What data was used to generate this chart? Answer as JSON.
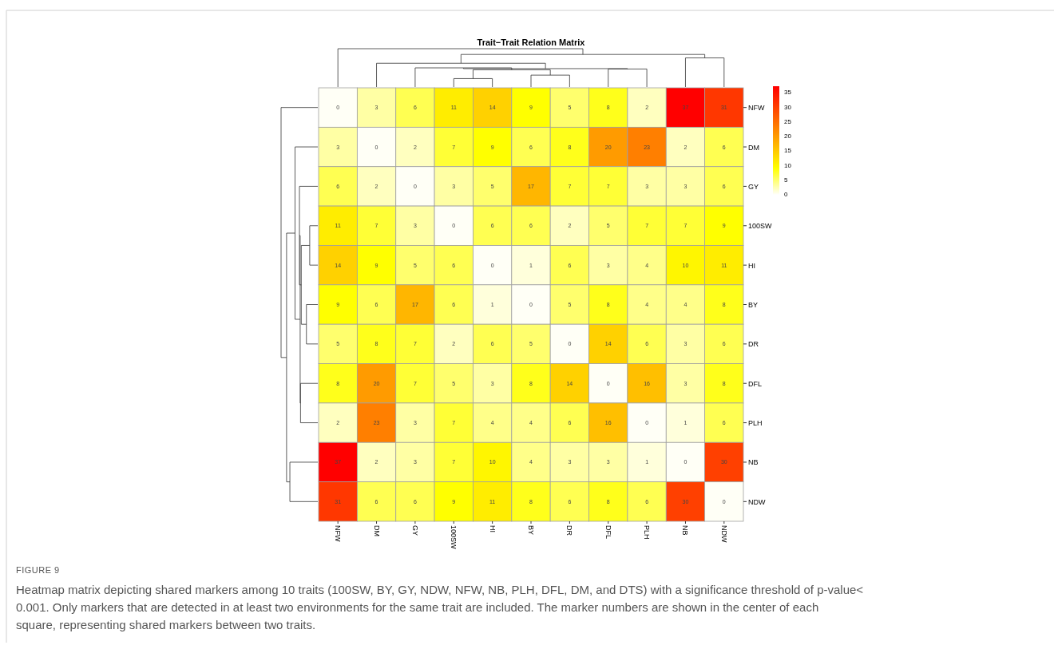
{
  "chart_data": {
    "type": "heatmap",
    "title": "Trait−Trait Relation Matrix",
    "categories": [
      "NFW",
      "DM",
      "GY",
      "100SW",
      "HI",
      "BY",
      "DR",
      "DFL",
      "PLH",
      "NB",
      "NDW"
    ],
    "y_categories": [
      "NFW",
      "DM",
      "GY",
      "100SW",
      "HI",
      "BY",
      "DR",
      "DFL",
      "PLH",
      "NB",
      "NDW"
    ],
    "cells": [
      [
        0,
        3,
        6,
        11,
        14,
        9,
        5,
        8,
        2,
        37,
        31
      ],
      [
        3,
        0,
        2,
        7,
        9,
        6,
        8,
        20,
        23,
        2,
        6
      ],
      [
        6,
        2,
        0,
        3,
        5,
        17,
        7,
        7,
        3,
        3,
        6
      ],
      [
        11,
        7,
        3,
        0,
        6,
        6,
        2,
        5,
        7,
        7,
        9
      ],
      [
        14,
        9,
        5,
        6,
        0,
        1,
        6,
        3,
        4,
        10,
        11
      ],
      [
        9,
        6,
        17,
        6,
        1,
        0,
        5,
        8,
        4,
        4,
        8
      ],
      [
        5,
        8,
        7,
        2,
        6,
        5,
        0,
        14,
        6,
        3,
        6
      ],
      [
        8,
        20,
        7,
        5,
        3,
        8,
        14,
        0,
        16,
        3,
        8
      ],
      [
        2,
        23,
        3,
        7,
        4,
        4,
        6,
        16,
        0,
        1,
        6
      ],
      [
        37,
        2,
        3,
        7,
        10,
        4,
        3,
        3,
        1,
        0,
        30
      ],
      [
        31,
        6,
        6,
        9,
        11,
        8,
        6,
        8,
        6,
        30,
        0
      ]
    ],
    "data_labels": true,
    "clim": [
      0,
      37
    ],
    "cticks": [
      0,
      5,
      10,
      15,
      20,
      25,
      30,
      35
    ],
    "annotations": [
      "FIGURE 9",
      "Heatmap matrix depicting shared markers among 10 traits (100SW, BY, GY, NDW, NFW, NB, PLH, DFL, DM, and DTS) with a significance threshold of p-value< 0.001. Only markers that are detected in at least two environments for the same trait are included. The marker numbers are shown in the center of each square, representing shared markers between two traits."
    ]
  }
}
